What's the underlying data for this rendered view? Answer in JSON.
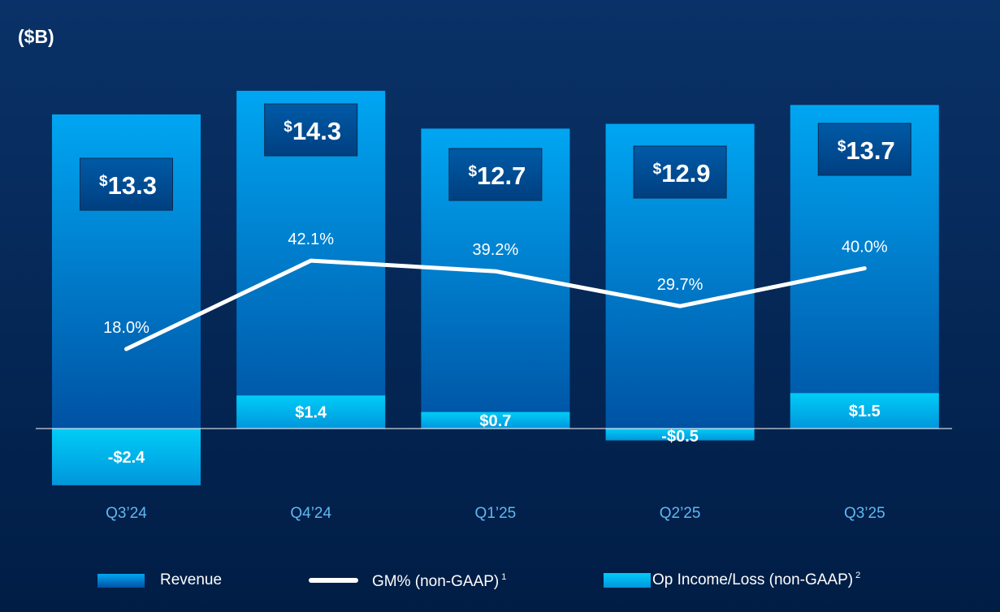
{
  "chart_data": {
    "type": "bar",
    "unit_label": "($B)",
    "categories": [
      "Q3’24",
      "Q4’24",
      "Q1’25",
      "Q2’25",
      "Q3’25"
    ],
    "series": [
      {
        "name": "Revenue",
        "type": "bar",
        "values": [
          13.3,
          14.3,
          12.7,
          12.9,
          13.7
        ],
        "labels": [
          "13.3",
          "14.3",
          "12.7",
          "12.9",
          "13.7"
        ],
        "label_prefix": "$"
      },
      {
        "name": "GM% (non-GAAP)",
        "footnote": "1",
        "type": "line",
        "values": [
          18.0,
          42.1,
          39.2,
          29.7,
          40.0
        ],
        "labels": [
          "18.0%",
          "42.1%",
          "39.2%",
          "29.7%",
          "40.0%"
        ]
      },
      {
        "name": "Op Income/Loss (non-GAAP)",
        "footnote": "2",
        "type": "bar",
        "values": [
          -2.4,
          1.4,
          0.7,
          -0.5,
          1.5
        ],
        "labels": [
          "-$2.4",
          "$1.4",
          "$0.7",
          "-$0.5",
          "$1.5"
        ]
      }
    ],
    "legend": "bottom",
    "grid": false,
    "colors": {
      "background": "#012a5a",
      "revenue_top": "#00a6f2",
      "revenue_bottom": "#0052a3",
      "op_top": "#00cdf7",
      "op_bottom": "#0096dc",
      "line": "#ffffff",
      "axis_label": "#5fb8f2",
      "label_box": "#004a90"
    }
  }
}
